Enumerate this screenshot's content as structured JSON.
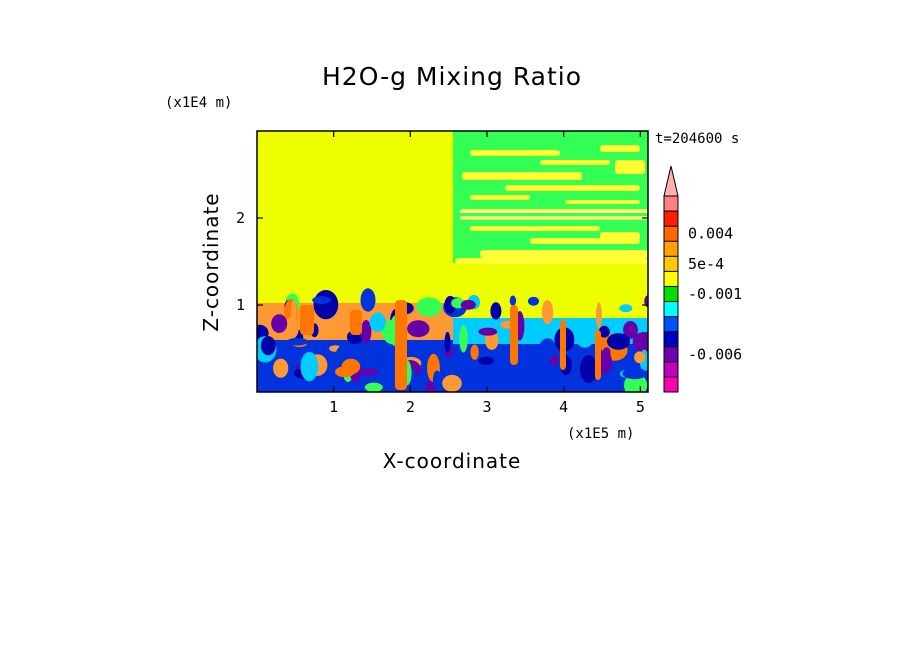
{
  "chart_data": {
    "type": "heatmap",
    "title": "H2O-g Mixing Ratio",
    "time_label": "t=204600 s",
    "xlabel": "X-coordinate",
    "ylabel": "Z-coordinate",
    "x_scale_label": "(x1E5 m)",
    "y_scale_label": "(x1E4 m)",
    "xlim": [
      0,
      5.1
    ],
    "ylim": [
      0,
      3.0
    ],
    "x_ticks": [
      {
        "value": 1,
        "label": "1"
      },
      {
        "value": 2,
        "label": "2"
      },
      {
        "value": 3,
        "label": "3"
      },
      {
        "value": 4,
        "label": "4"
      },
      {
        "value": 5,
        "label": "5"
      }
    ],
    "y_ticks": [
      {
        "value": 1,
        "label": "1"
      },
      {
        "value": 2,
        "label": "2"
      }
    ],
    "colorbar": {
      "extend": "max",
      "levels": [
        {
          "color": "#ff8080"
        },
        {
          "color": "#ff2000"
        },
        {
          "color": "#ff6800"
        },
        {
          "color": "#ffa000"
        },
        {
          "color": "#ffc800"
        },
        {
          "color": "#ffff00"
        },
        {
          "color": "#00e000"
        },
        {
          "color": "#00ffff"
        },
        {
          "color": "#0050ff"
        },
        {
          "color": "#0000c0"
        },
        {
          "color": "#7000b0"
        },
        {
          "color": "#c000c0"
        },
        {
          "color": "#ff00b0"
        }
      ],
      "labels": [
        {
          "text": "0.004",
          "level_index": 2
        },
        {
          "text": "5e-4",
          "level_index": 4
        },
        {
          "text": "-0.001",
          "level_index": 6
        },
        {
          "text": "-0.006",
          "level_index": 10
        }
      ],
      "arrow_color": "#ffb0b0"
    },
    "field_colors": {
      "background": "#eeff00",
      "upper_right": "#33ff55",
      "upper_stripes": "#ffff33",
      "mid_band": "#ff9933",
      "low_band": "#0033dd",
      "deep": "#0000aa",
      "cyan": "#00ccff",
      "purple": "#6600aa",
      "orange_plume": "#ff7700"
    }
  }
}
